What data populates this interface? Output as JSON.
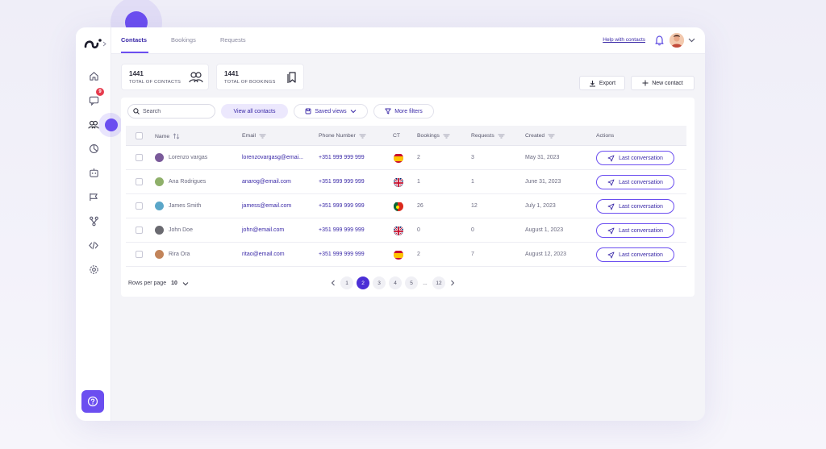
{
  "topbar": {
    "tabs": [
      {
        "label": "Contacts",
        "active": true
      },
      {
        "label": "Bookings",
        "active": false
      },
      {
        "label": "Requests",
        "active": false
      }
    ],
    "help_link": "Help with contacts"
  },
  "sidebar": {
    "items": [
      {
        "icon": "home-icon"
      },
      {
        "icon": "chat-icon",
        "badge": "9"
      },
      {
        "icon": "contacts-icon",
        "active": true
      },
      {
        "icon": "analytics-icon"
      },
      {
        "icon": "bot-icon"
      },
      {
        "icon": "campaign-icon"
      },
      {
        "icon": "flow-icon"
      },
      {
        "icon": "code-icon"
      },
      {
        "icon": "settings-icon"
      }
    ],
    "help_icon": "help-icon"
  },
  "stats": {
    "contacts": {
      "value": "1441",
      "label": "TOTAL OF CONTACTS"
    },
    "bookings": {
      "value": "1441",
      "label": "TOTAL OF BOOKINGS"
    }
  },
  "actions": {
    "export": "Export",
    "new_contact": "New contact"
  },
  "filters": {
    "search_placeholder": "Search",
    "view_all": "View all contacts",
    "saved_views": "Saved views",
    "more_filters": "More filters"
  },
  "table": {
    "columns": [
      "Name",
      "Email",
      "Phone Number",
      "CT",
      "Bookings",
      "Requests",
      "Created",
      "Actions"
    ],
    "rows": [
      {
        "name": "Lorenzo vargas",
        "email": "lorenzovargasg@emai...",
        "phone": "+351 999 999 999",
        "country": "es",
        "bookings": "2",
        "requests": "3",
        "created": "May 31, 2023",
        "action": "Last conversation",
        "avatar_color": "#7a5a9a"
      },
      {
        "name": "Ana Rodrigues",
        "email": "anarog@email.com",
        "phone": "+351 999 999 999",
        "country": "gb",
        "bookings": "1",
        "requests": "1",
        "created": "June 31, 2023",
        "action": "Last conversation",
        "avatar_color": "#8fb06a"
      },
      {
        "name": "James Smith",
        "email": "jamess@email.com",
        "phone": "+351 999 999 999",
        "country": "pt",
        "bookings": "26",
        "requests": "12",
        "created": "July 1, 2023",
        "action": "Last conversation",
        "avatar_color": "#5aa6c8"
      },
      {
        "name": "John Doe",
        "email": "john@email.com",
        "phone": "+351 999 999 999",
        "country": "gb",
        "bookings": "0",
        "requests": "0",
        "created": "August 1, 2023",
        "action": "Last conversation",
        "avatar_color": "#6a6a70"
      },
      {
        "name": "Rira Ora",
        "email": "ritao@email.com",
        "phone": "+351 999 999 999",
        "country": "es",
        "bookings": "2",
        "requests": "7",
        "created": "August 12, 2023",
        "action": "Last conversation",
        "avatar_color": "#c2845a"
      }
    ]
  },
  "footer": {
    "rows_label": "Rows per page",
    "rows_value": "10",
    "pages": [
      "1",
      "2",
      "3",
      "4",
      "5",
      "...",
      "12"
    ],
    "current_page": "2"
  },
  "colors": {
    "accent": "#6b4ef0",
    "accent_dark": "#3b2aa8"
  }
}
